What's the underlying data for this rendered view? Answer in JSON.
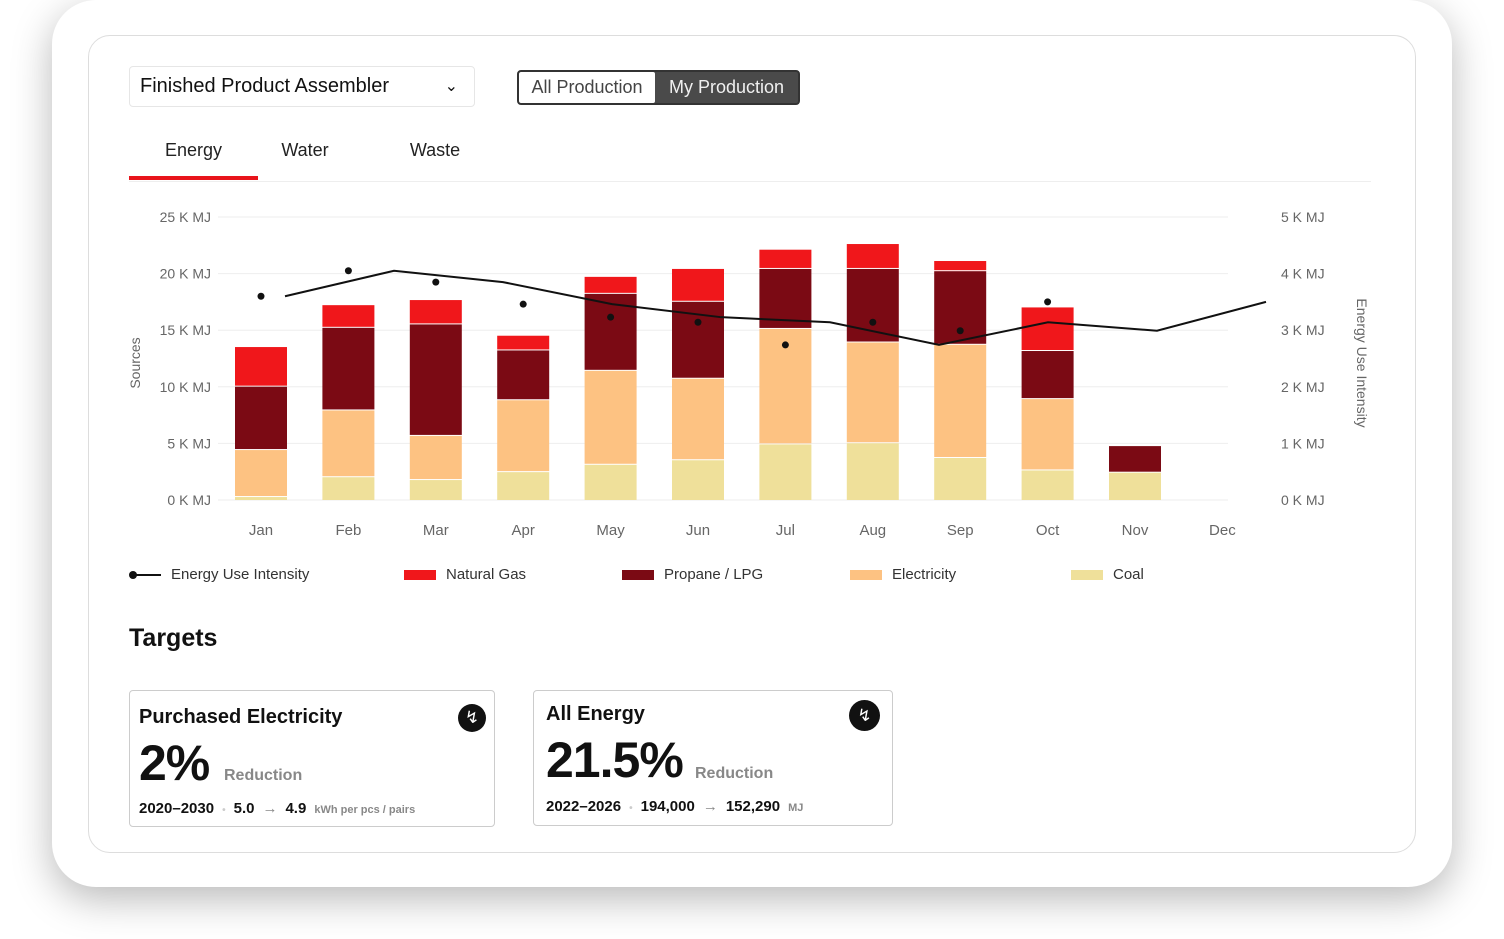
{
  "header": {
    "dropdown_value": "Finished Product Assembler",
    "toggle": {
      "options": [
        "All Production",
        "My Production"
      ],
      "selected": "My Production"
    }
  },
  "tabs": [
    {
      "label": "Energy",
      "active": true
    },
    {
      "label": "Water",
      "active": false
    },
    {
      "label": "Waste",
      "active": false
    }
  ],
  "chart_data": {
    "type": "bar",
    "stacked": true,
    "categories": [
      "Jan",
      "Feb",
      "Mar",
      "Apr",
      "May",
      "Jun",
      "Jul",
      "Aug",
      "Sep",
      "Oct",
      "Nov",
      "Dec"
    ],
    "ylabel": "Sources",
    "y2label": "Energy Use Intensity",
    "ylim": [
      0,
      25
    ],
    "y2lim": [
      0,
      5
    ],
    "yticks": [
      "0 K MJ",
      "5 K MJ",
      "10 K MJ",
      "15 K MJ",
      "20 K MJ",
      "25 K MJ"
    ],
    "y2ticks": [
      "0 K MJ",
      "1 K MJ",
      "2 K MJ",
      "3 K MJ",
      "4 K MJ",
      "5 K MJ"
    ],
    "grid": true,
    "legend_position": "bottom",
    "series": [
      {
        "name": "Coal",
        "color": "#efe09a",
        "values": [
          0.35,
          2.1,
          1.85,
          2.55,
          3.2,
          3.6,
          5.0,
          5.1,
          3.8,
          2.7,
          2.5,
          0
        ]
      },
      {
        "name": "Electricity",
        "color": "#fdc282",
        "values": [
          4.15,
          5.9,
          3.9,
          6.35,
          8.3,
          7.2,
          10.2,
          8.9,
          10.0,
          6.3,
          0,
          0
        ]
      },
      {
        "name": "Propane / LPG",
        "color": "#7b0a14",
        "values": [
          5.6,
          7.3,
          9.85,
          4.4,
          6.8,
          6.8,
          5.3,
          6.5,
          6.5,
          4.25,
          2.35,
          0
        ]
      },
      {
        "name": "Natural Gas",
        "color": "#f0171b",
        "values": [
          3.5,
          2.0,
          2.15,
          1.3,
          1.5,
          2.9,
          1.7,
          2.2,
          0.9,
          3.85,
          0,
          0
        ]
      }
    ],
    "line_series": {
      "name": "Energy Use Intensity",
      "axis": "right",
      "color": "#111111",
      "values": [
        3.6,
        4.05,
        3.85,
        3.46,
        3.23,
        3.14,
        2.74,
        3.14,
        2.99,
        3.5
      ]
    }
  },
  "legend": [
    "Energy Use Intensity",
    "Natural Gas",
    "Propane / LPG",
    "Electricity",
    "Coal"
  ],
  "targets": {
    "title": "Targets",
    "cards": [
      {
        "title": "Purchased Electricity",
        "value": "2%",
        "label": "Reduction",
        "period": "2020–2030",
        "from": "5.0",
        "to": "4.9",
        "unit": "kWh per pcs / pairs",
        "icon": "lightning-icon"
      },
      {
        "title": "All Energy",
        "value": "21.5%",
        "label": "Reduction",
        "period": "2022–2026",
        "from": "194,000",
        "to": "152,290",
        "unit": "MJ",
        "icon": "lightning-icon"
      }
    ]
  }
}
